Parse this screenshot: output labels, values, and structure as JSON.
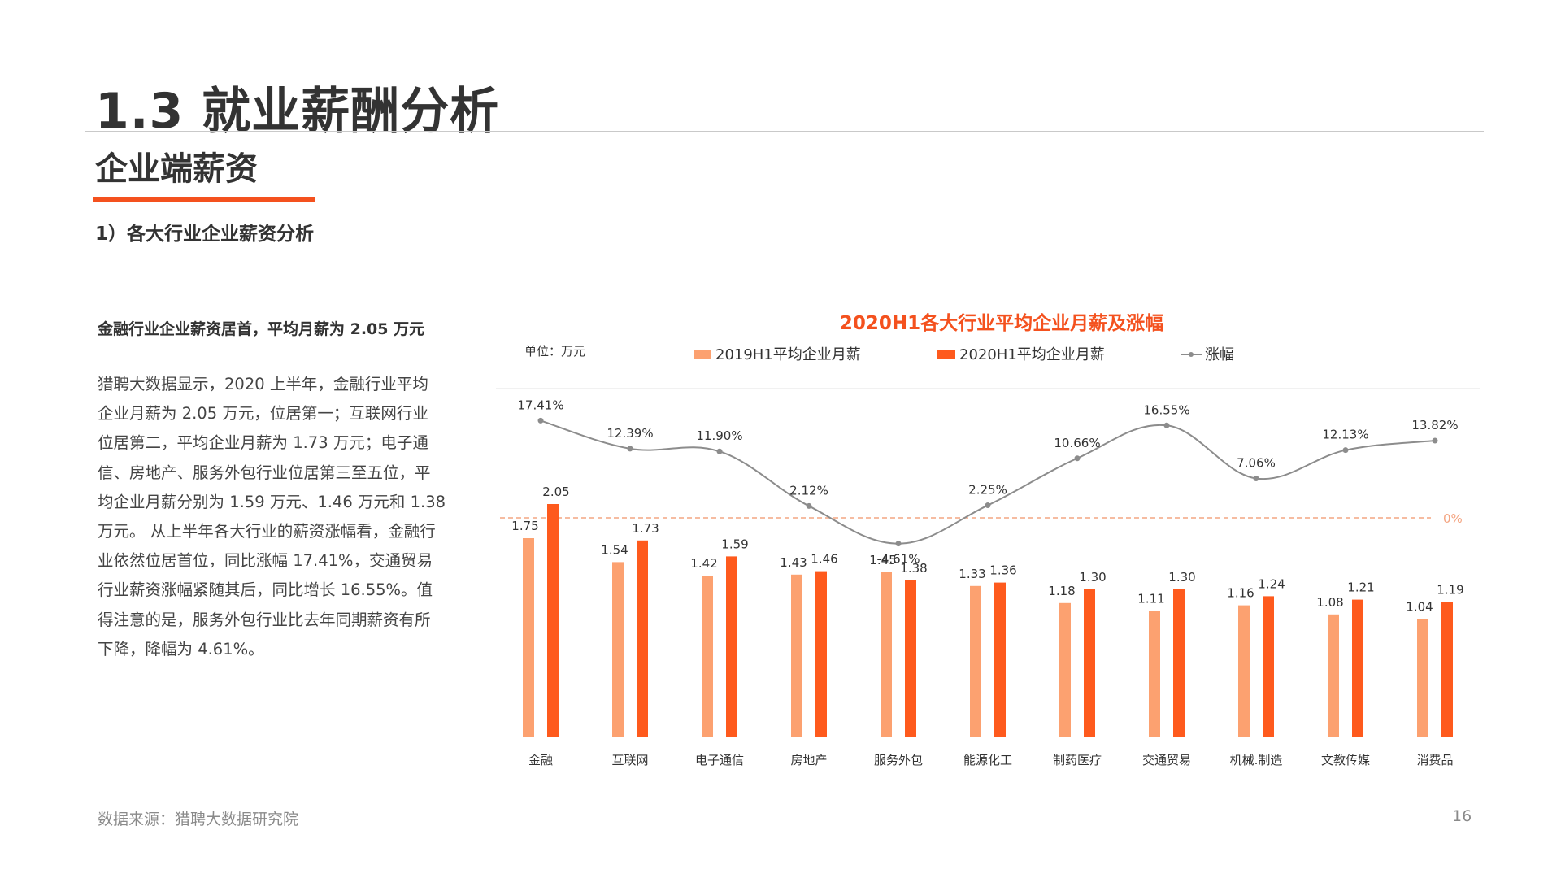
{
  "slide": {
    "main_title": "1.3 就业薪酬分析",
    "section_title": "企业端薪资",
    "subsection_title": "1）各大行业企业薪资分析",
    "summary_heading": "金融行业企业薪资居首，平均月薪为 2.05 万元",
    "body_text": "猎聘大数据显示，2020 上半年，金融行业平均\n企业月薪为 2.05 万元，位居第一；互联网行业\n位居第二，平均企业月薪为 1.73 万元；电子通\n信、房地产、服务外包行业位居第三至五位，平\n均企业月薪分别为 1.59 万元、1.46 万元和 1.38\n万元。 从上半年各大行业的薪资涨幅看，金融行\n业依然位居首位，同比涨幅 17.41%，交通贸易\n行业薪资涨幅紧随其后，同比增长 16.55%。值\n得注意的是，服务外包行业比去年同期薪资有所\n下降，降幅为 4.61%。",
    "source_note": "数据来源：猎聘大数据研究院",
    "page_number": "16"
  },
  "colors": {
    "accent": "#f4511e",
    "series_2019": "#fca170",
    "series_2020": "#fe5a1d",
    "growth_line": "#8c8c8c",
    "zero_line": "#f4a582"
  },
  "chart_data": {
    "type": "bar",
    "title": "2020H1各大行业平均企业月薪及涨幅",
    "unit_label": "单位：万元",
    "categories": [
      "金融",
      "互联网",
      "电子通信",
      "房地产",
      "服务外包",
      "能源化工",
      "制药医疗",
      "交通贸易",
      "机械.制造",
      "文教传媒",
      "消费品"
    ],
    "series": [
      {
        "name": "2019H1平均企业月薪",
        "values": [
          1.75,
          1.54,
          1.42,
          1.43,
          1.45,
          1.33,
          1.18,
          1.11,
          1.16,
          1.08,
          1.04
        ],
        "labels": [
          "1.75",
          "1.54",
          "1.42",
          "1.43",
          "1.45",
          "1.33",
          "1.18",
          "1.11",
          "1.16",
          "1.08",
          "1.04"
        ]
      },
      {
        "name": "2020H1平均企业月薪",
        "values": [
          2.05,
          1.73,
          1.59,
          1.46,
          1.38,
          1.36,
          1.3,
          1.3,
          1.24,
          1.21,
          1.19
        ],
        "labels": [
          "2.05",
          "1.73",
          "1.59",
          "1.46",
          "1.38",
          "1.36",
          "1.30",
          "1.30",
          "1.24",
          "1.21",
          "1.19"
        ]
      }
    ],
    "line_series": {
      "name": "涨幅",
      "values": [
        17.41,
        12.39,
        11.9,
        2.12,
        -4.61,
        2.25,
        10.66,
        16.55,
        7.06,
        12.13,
        13.82
      ],
      "labels": [
        "17.41%",
        "12.39%",
        "11.90%",
        "2.12%",
        "-4.61%",
        "2.25%",
        "10.66%",
        "16.55%",
        "7.06%",
        "12.13%",
        "13.82%"
      ]
    },
    "zero_label": "0%",
    "legend_position": "top"
  }
}
